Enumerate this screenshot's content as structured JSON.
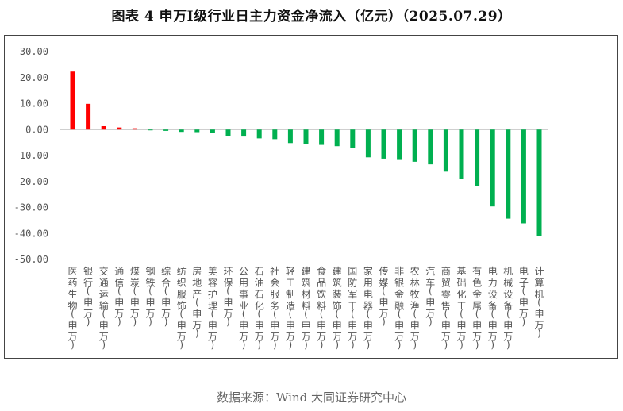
{
  "title": "图表 4  申万Ⅰ级行业日主力资金净流入（亿元）（2025.07.29）",
  "source": "数据来源：Wind 大同证券研究中心",
  "colors": {
    "positive": "#ff0000",
    "negative": "#00b050",
    "axis": "#bfbfbf",
    "frame": "#444444"
  },
  "chart_data": {
    "type": "bar",
    "title": "申万Ⅰ级行业日主力资金净流入（亿元）（2025.07.29）",
    "xlabel": "",
    "ylabel": "",
    "ylim": [
      -50,
      30
    ],
    "yticks": [
      "30.00",
      "20.00",
      "10.00",
      "0.00",
      "-10.00",
      "-20.00",
      "-30.00",
      "-40.00",
      "-50.00"
    ],
    "ytick_values": [
      30,
      20,
      10,
      0,
      -10,
      -20,
      -30,
      -40,
      -50
    ],
    "grid": false,
    "legend": "none",
    "categories": [
      "医药生物(申万)",
      "银行(申万)",
      "交通运输(申万)",
      "通信(申万)",
      "煤炭(申万)",
      "钢铁(申万)",
      "综合(申万)",
      "纺织服饰(申万)",
      "房地产(申万)",
      "美容护理(申万)",
      "环保(申万)",
      "公用事业(申万)",
      "石油石化(申万)",
      "社会服务(申万)",
      "轻工制造(申万)",
      "建筑材料(申万)",
      "食品饮料(申万)",
      "建筑装饰(申万)",
      "国防军工(申万)",
      "家用电器(申万)",
      "传媒(申万)",
      "非银金融(申万)",
      "农林牧渔(申万)",
      "汽车(申万)",
      "商贸零售(申万)",
      "基础化工(申万)",
      "有色金属(申万)",
      "电力设备(申万)",
      "机械设备(申万)",
      "电子(申万)",
      "计算机(申万)"
    ],
    "values": [
      22.3,
      9.9,
      1.3,
      0.8,
      0.5,
      -0.3,
      -0.5,
      -0.9,
      -1.0,
      -1.3,
      -2.4,
      -2.7,
      -3.4,
      -3.7,
      -5.2,
      -5.7,
      -5.9,
      -6.4,
      -7.1,
      -10.7,
      -11.2,
      -11.7,
      -12.4,
      -13.4,
      -16.2,
      -18.9,
      -21.8,
      -29.6,
      -34.3,
      -36.1,
      -41.1
    ]
  }
}
